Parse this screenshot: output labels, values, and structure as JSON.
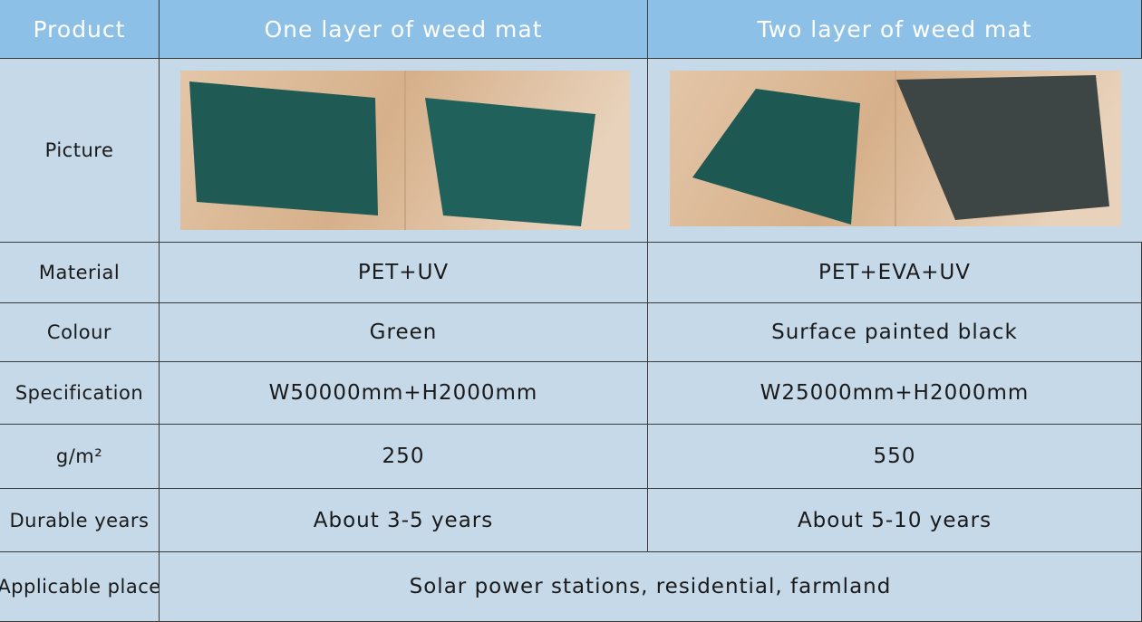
{
  "table": {
    "header": [
      "Product",
      "One layer of weed mat",
      "Two layer of weed mat"
    ],
    "rows": [
      [
        "Picture"
      ],
      [
        "Material",
        "PET+UV",
        "PET+EVA+UV"
      ],
      [
        "Colour",
        "Green",
        "Surface painted black"
      ],
      [
        "Specification",
        "W50000mm+H2000mm",
        "W25000mm+H2000mm"
      ],
      [
        "g/m²",
        "250",
        "550"
      ],
      [
        "Durable years",
        "About 3-5 years",
        "About 5-10 years"
      ],
      [
        "Applicable place",
        "Solar power stations, residential, farmland"
      ]
    ]
  }
}
